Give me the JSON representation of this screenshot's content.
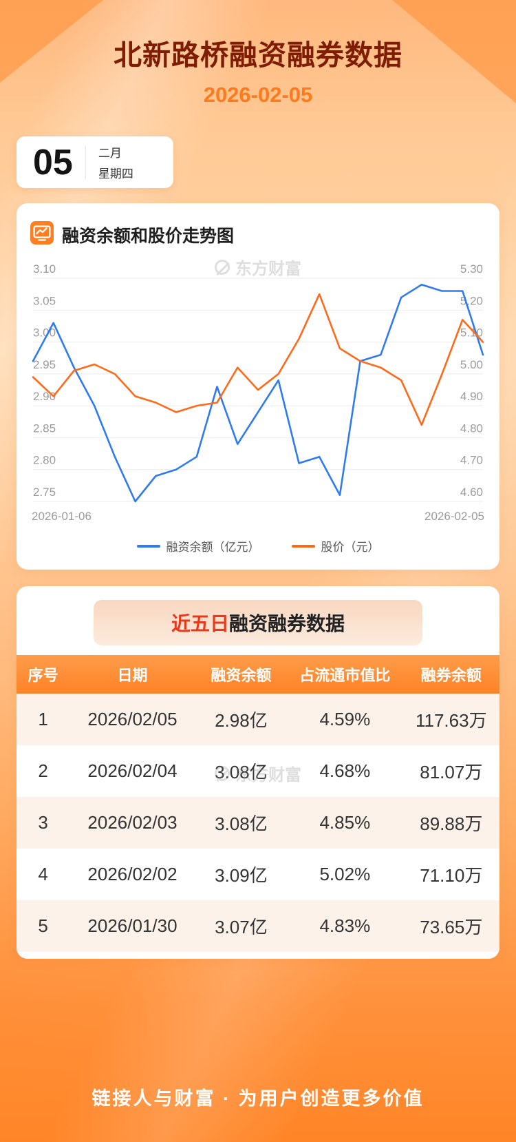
{
  "page": {
    "title": "北新路桥融资融券数据",
    "date": "2026-02-05",
    "footer": "链接人与财富 · 为用户创造更多价值"
  },
  "date_badge": {
    "day": "05",
    "month": "二月",
    "weekday": "星期四"
  },
  "chart_card": {
    "title": "融资余额和股价走势图",
    "watermark": "东方财富"
  },
  "chart_data": {
    "type": "line",
    "title": "融资余额和股价走势图",
    "x_labels": [
      "2026-01-06",
      "2026-02-05"
    ],
    "grid": true,
    "legend_position": "bottom",
    "left_axis": {
      "label": "融资余额（亿元）",
      "min": 2.75,
      "max": 3.1,
      "ticks": [
        "3.10",
        "3.05",
        "3.00",
        "2.95",
        "2.90",
        "2.85",
        "2.80",
        "2.75"
      ]
    },
    "right_axis": {
      "label": "股价（元）",
      "min": 4.6,
      "max": 5.3,
      "ticks": [
        "5.30",
        "5.20",
        "5.10",
        "5.00",
        "4.90",
        "4.80",
        "4.70",
        "4.60"
      ]
    },
    "series": [
      {
        "name": "融资余额（亿元）",
        "axis": "left",
        "color": "#2e7bf0",
        "values": [
          2.97,
          3.03,
          2.96,
          2.9,
          2.82,
          2.75,
          2.79,
          2.8,
          2.82,
          2.93,
          2.84,
          2.89,
          2.94,
          2.81,
          2.82,
          2.76,
          2.97,
          2.98,
          3.07,
          3.09,
          3.08,
          3.08,
          2.98
        ]
      },
      {
        "name": "股价（元）",
        "axis": "right",
        "color": "#ff6a1a",
        "values": [
          4.99,
          4.93,
          5.01,
          5.03,
          5.0,
          4.93,
          4.91,
          4.88,
          4.9,
          4.91,
          5.02,
          4.95,
          5.0,
          5.11,
          5.25,
          5.08,
          5.04,
          5.02,
          4.98,
          4.84,
          5.0,
          5.17,
          5.1
        ]
      }
    ]
  },
  "table_card": {
    "title_highlight": "近五日",
    "title_rest": "融资融券数据",
    "watermark": "东方财富",
    "columns": [
      "序号",
      "日期",
      "融资余额",
      "占流通市值比",
      "融券余额"
    ],
    "rows": [
      [
        "1",
        "2026/02/05",
        "2.98亿",
        "4.59%",
        "117.63万"
      ],
      [
        "2",
        "2026/02/04",
        "3.08亿",
        "4.68%",
        "81.07万"
      ],
      [
        "3",
        "2026/02/03",
        "3.08亿",
        "4.85%",
        "89.88万"
      ],
      [
        "4",
        "2026/02/02",
        "3.09亿",
        "5.02%",
        "71.10万"
      ],
      [
        "5",
        "2026/01/30",
        "3.07亿",
        "4.83%",
        "73.65万"
      ]
    ]
  },
  "colors": {
    "accent_orange": "#ff7e22",
    "series_blue": "#2e7bf0",
    "series_orange": "#ff6a1a",
    "title_maroon": "#7e1d03",
    "highlight_red": "#e8391c"
  }
}
